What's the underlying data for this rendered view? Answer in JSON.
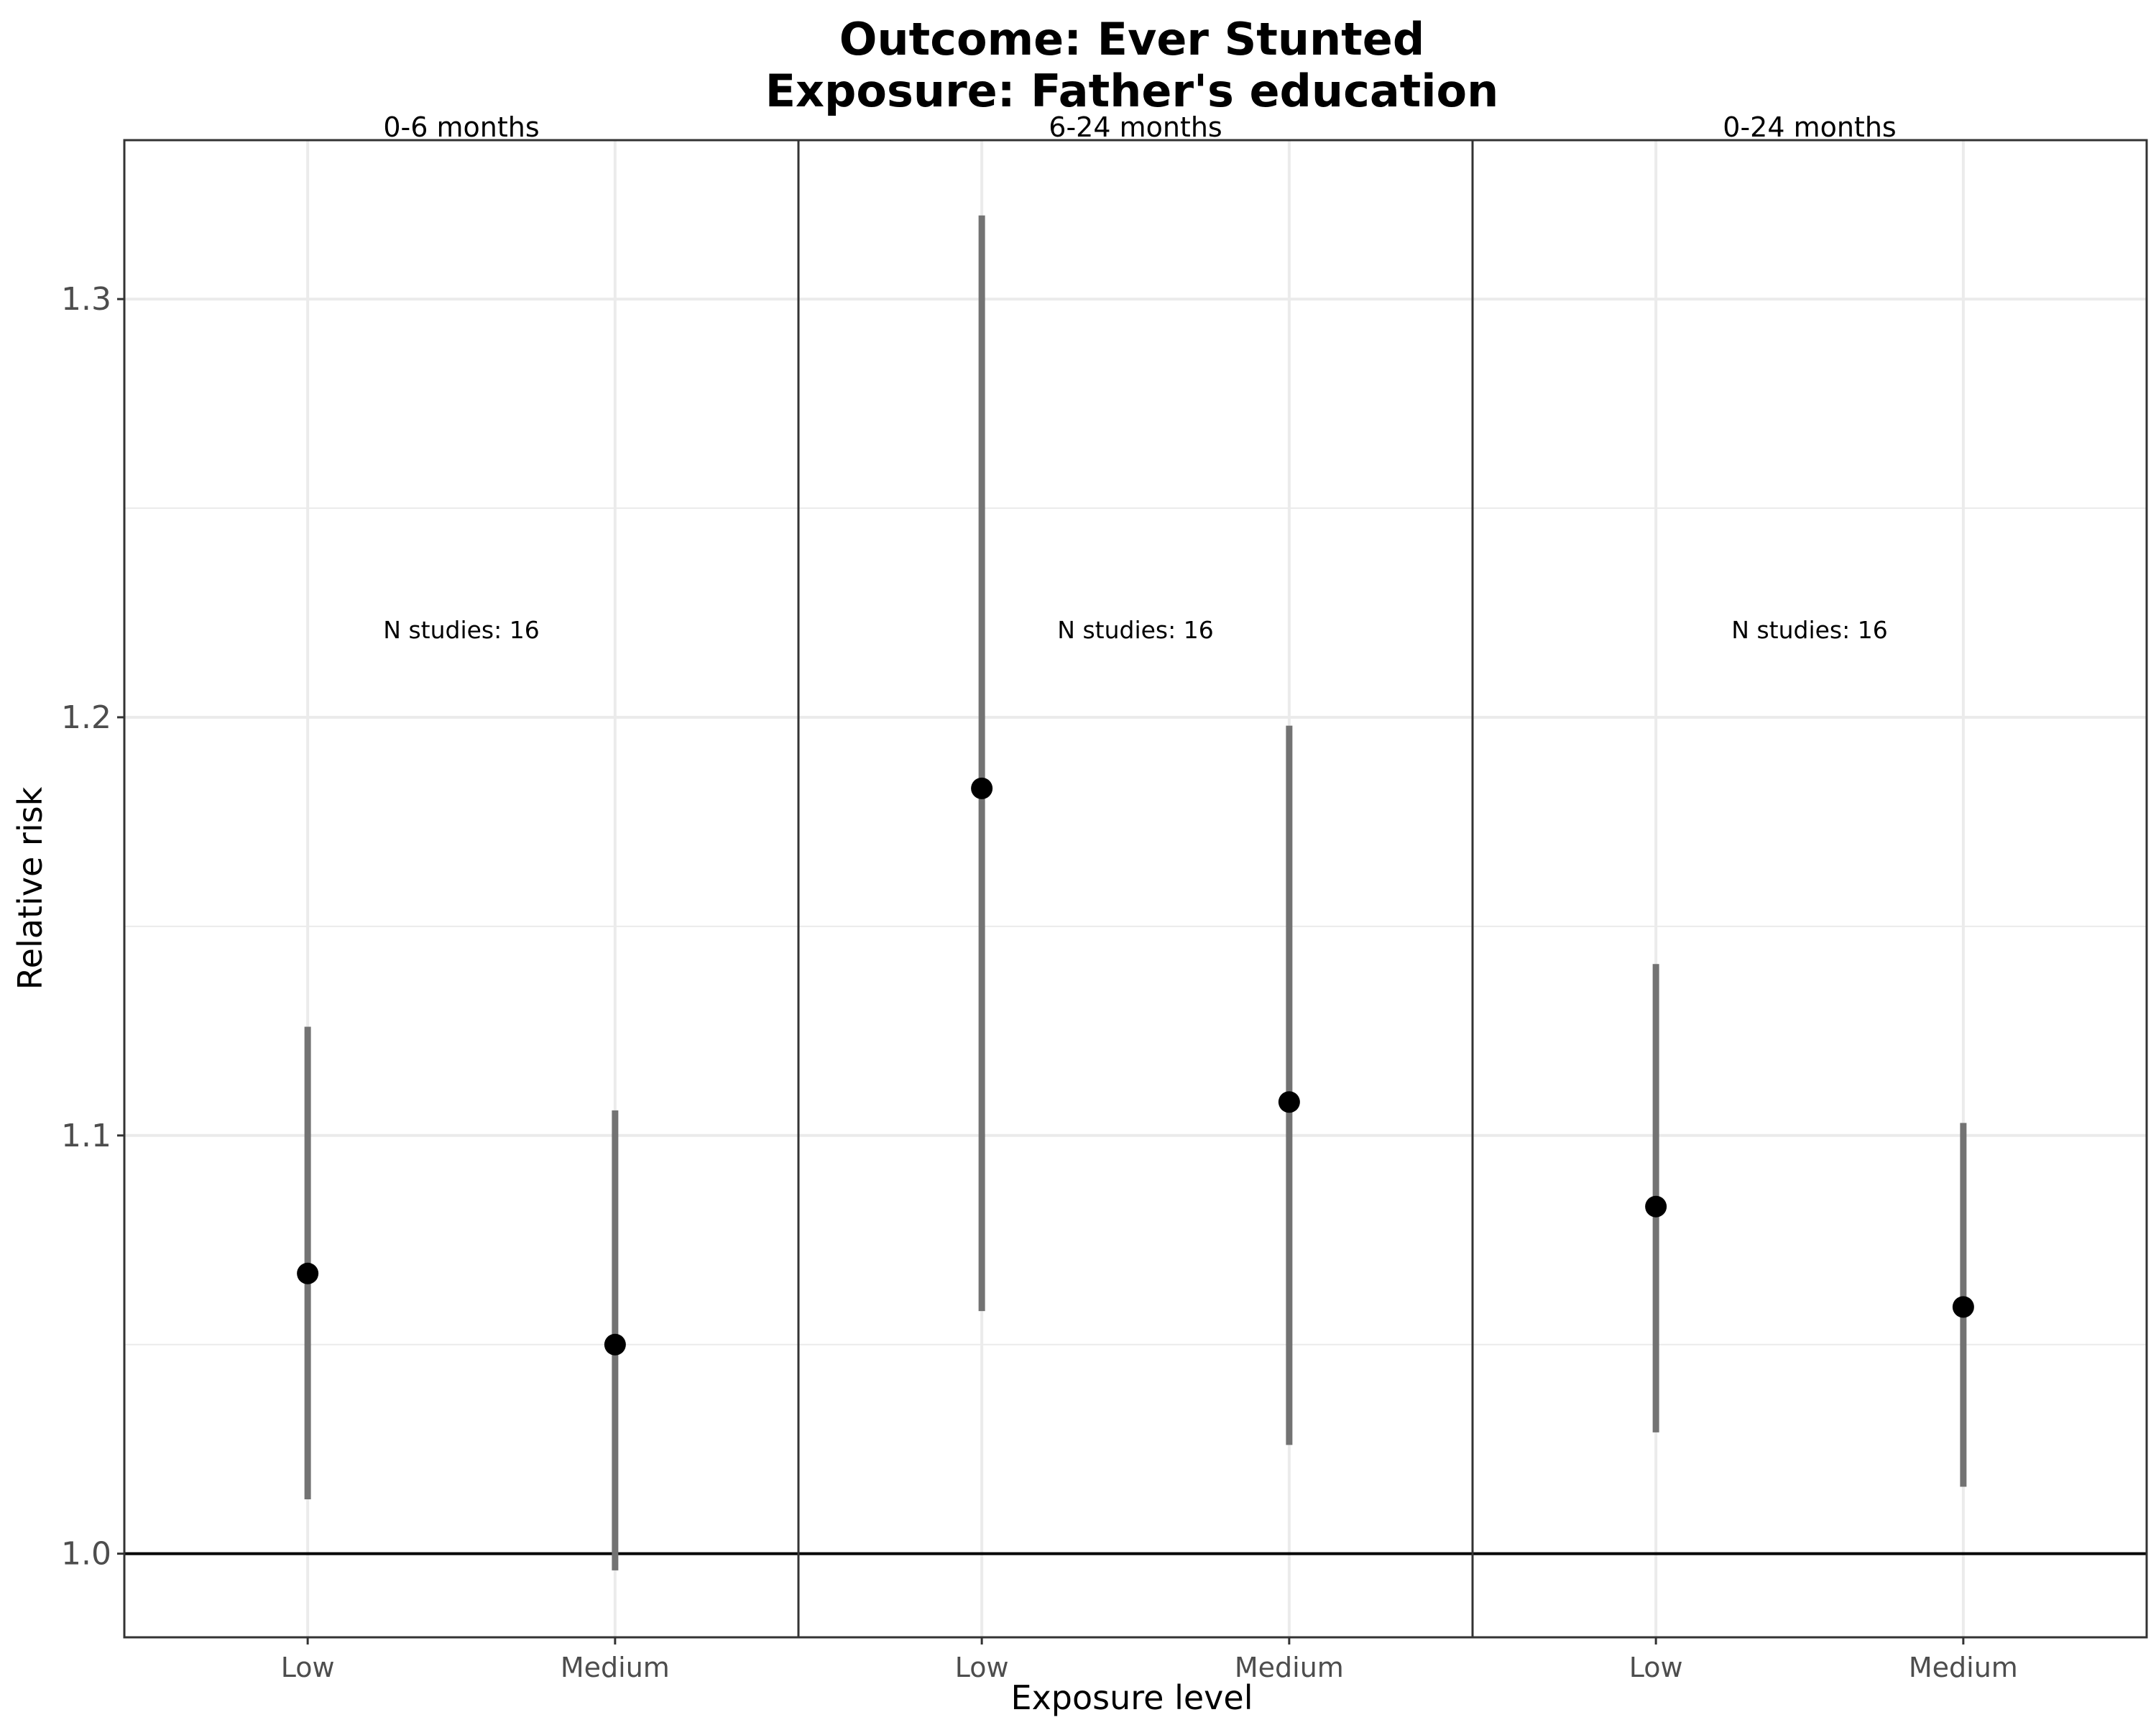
{
  "chart_data": {
    "type": "errorbar",
    "title": [
      "Outcome: Ever Stunted",
      "Exposure: Father's education"
    ],
    "xlabel": "Exposure level",
    "ylabel": "Relative risk",
    "categories": [
      "Low",
      "Medium"
    ],
    "yticks": [
      "1.0",
      "1.1",
      "1.2",
      "1.3"
    ],
    "ytick_values": [
      1.0,
      1.1,
      1.2,
      1.3
    ],
    "ylim": [
      0.98,
      1.338
    ],
    "reference_line": 1.0,
    "grid": true,
    "facets": [
      {
        "label": "0-6 months",
        "annotation": "N studies: 16",
        "points": [
          {
            "category": "Low",
            "estimate": 1.067,
            "lower": 1.013,
            "upper": 1.126
          },
          {
            "category": "Medium",
            "estimate": 1.05,
            "lower": 0.996,
            "upper": 1.106
          }
        ]
      },
      {
        "label": "6-24 months",
        "annotation": "N studies: 16",
        "points": [
          {
            "category": "Low",
            "estimate": 1.183,
            "lower": 1.058,
            "upper": 1.32
          },
          {
            "category": "Medium",
            "estimate": 1.108,
            "lower": 1.026,
            "upper": 1.198
          }
        ]
      },
      {
        "label": "0-24 months",
        "annotation": "N studies: 16",
        "points": [
          {
            "category": "Low",
            "estimate": 1.083,
            "lower": 1.029,
            "upper": 1.141
          },
          {
            "category": "Medium",
            "estimate": 1.059,
            "lower": 1.016,
            "upper": 1.103
          }
        ]
      }
    ],
    "colors": {
      "point": "#000000",
      "errorbar": "#737373",
      "panel_border": "#333333",
      "grid": "#ebebeb",
      "reference_line": "#000000"
    }
  }
}
